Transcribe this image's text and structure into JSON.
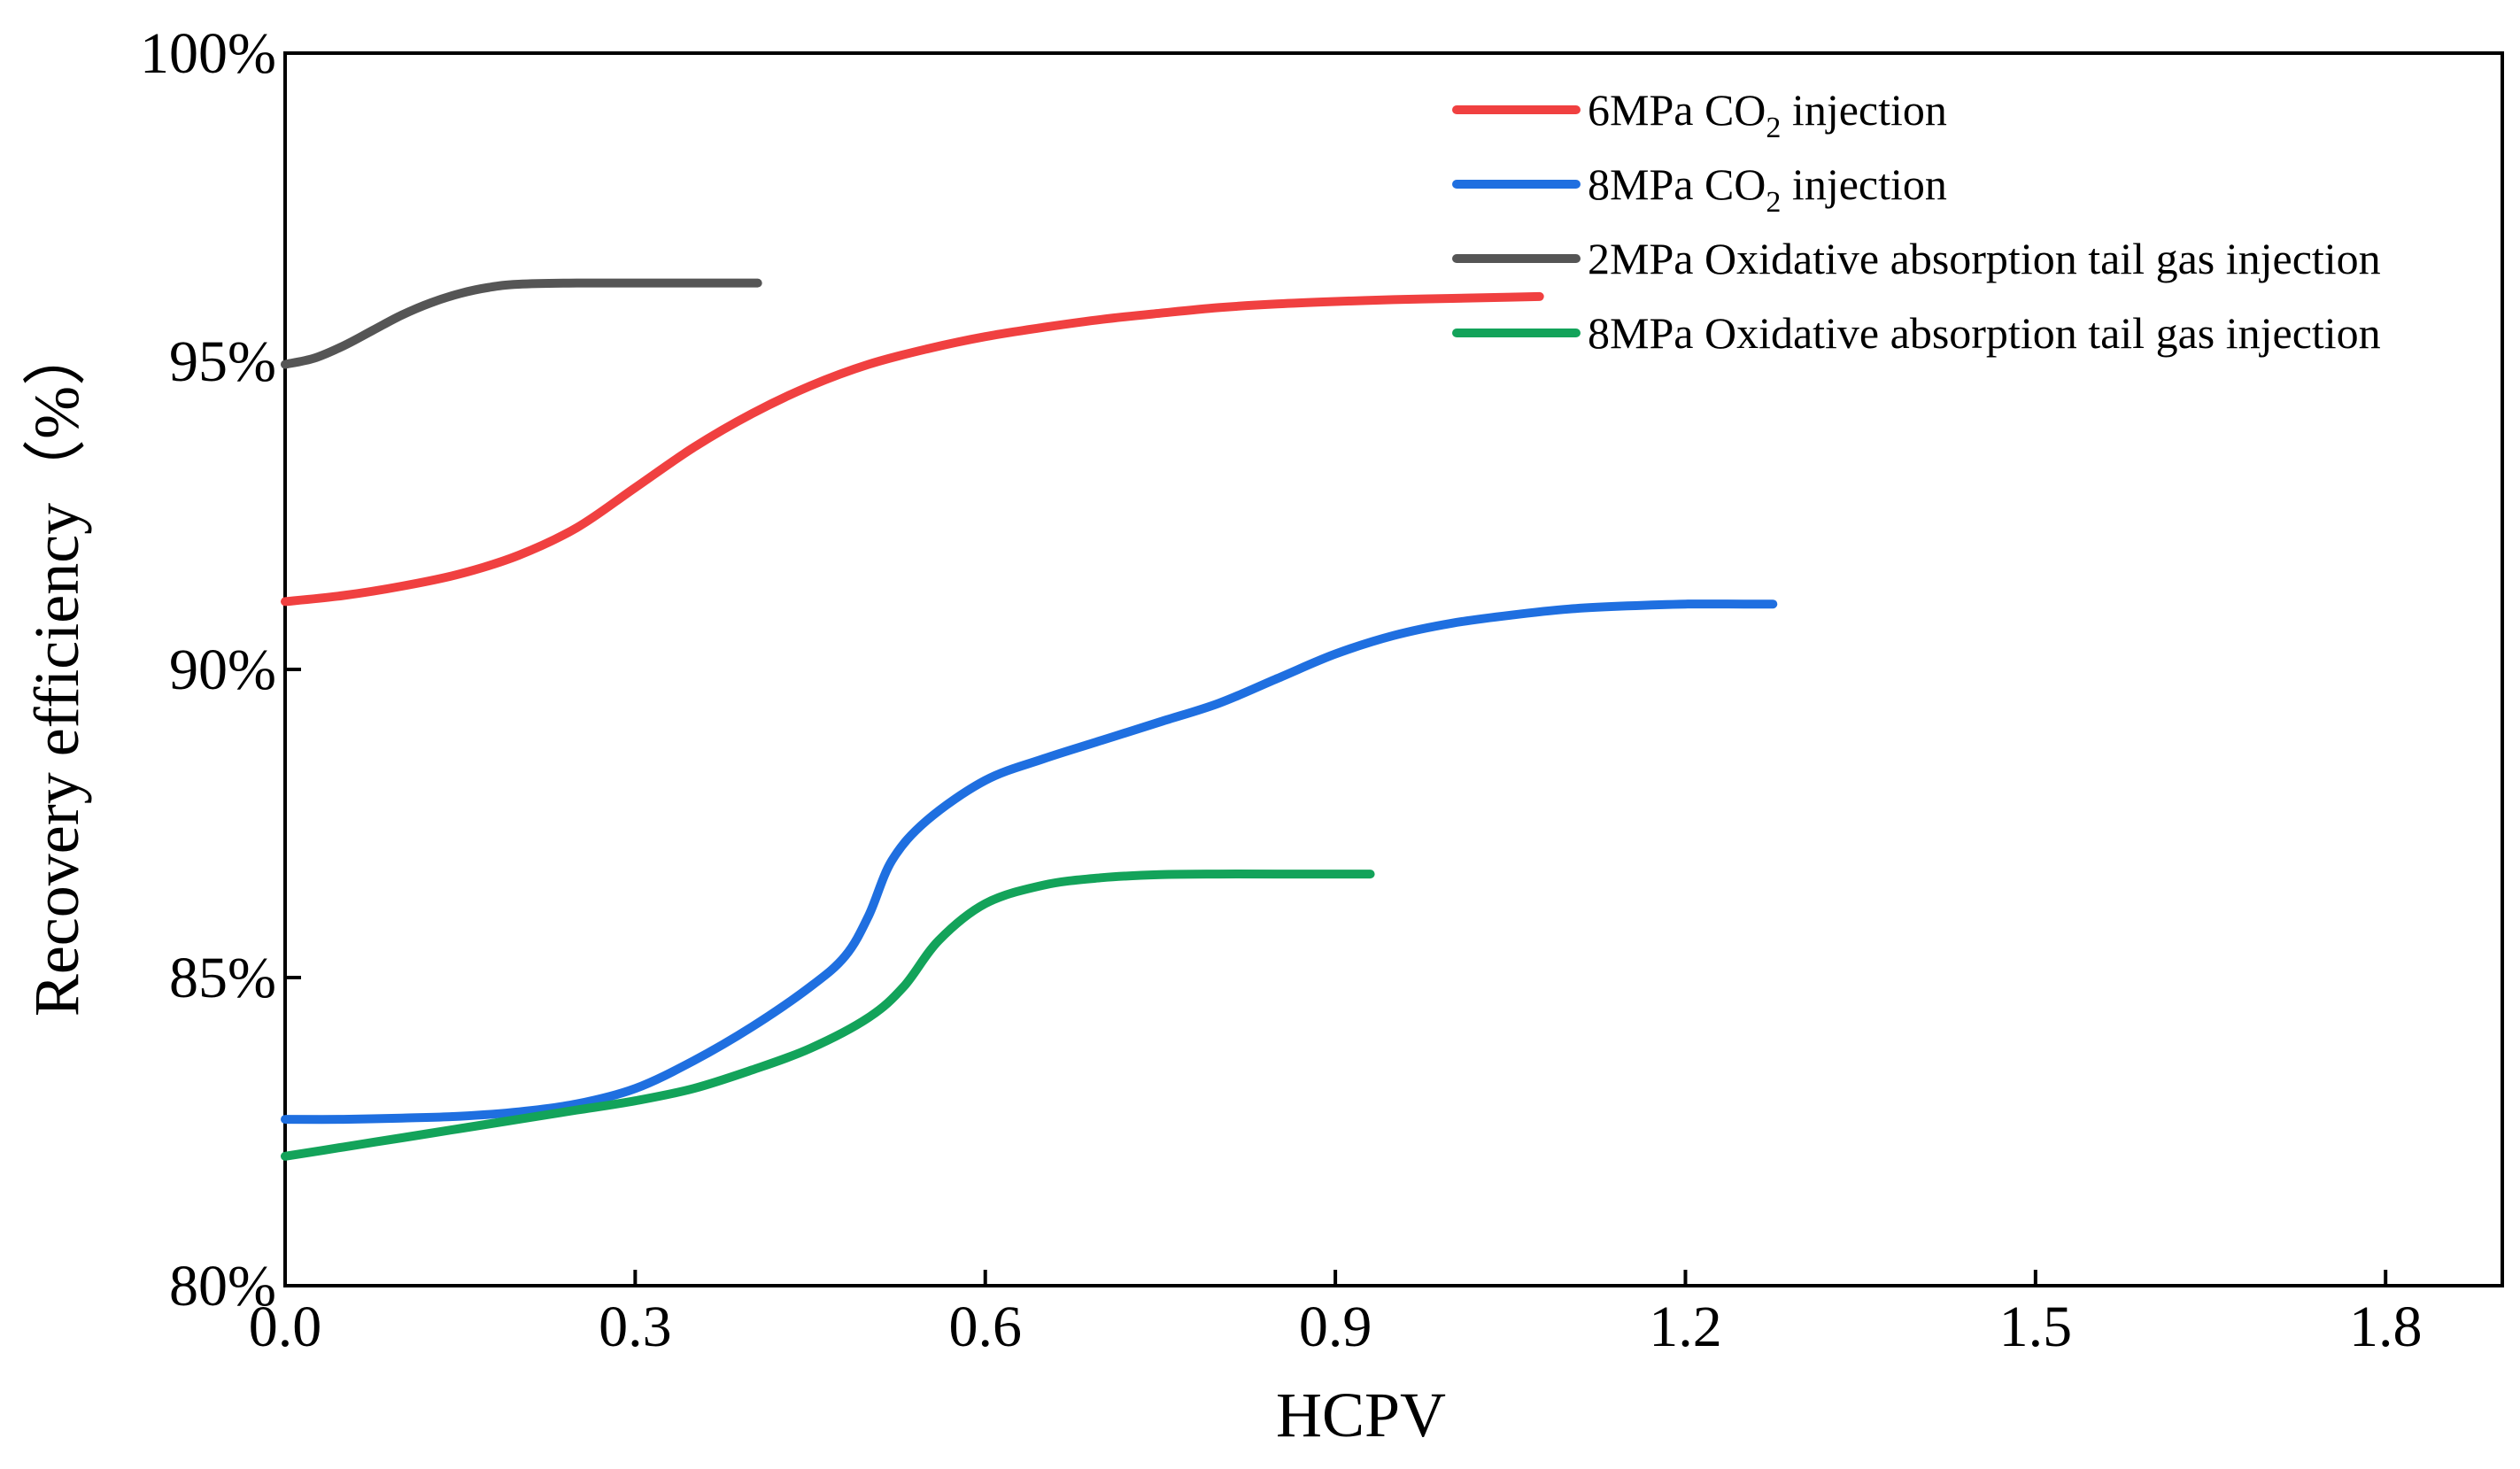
{
  "chart_data": {
    "type": "line",
    "title": "",
    "xlabel": "HCPV",
    "ylabel": "Recovery efficiency（%）",
    "xlim": [
      0.0,
      1.9
    ],
    "ylim": [
      80,
      100
    ],
    "xticks": [
      0.0,
      0.3,
      0.6,
      0.9,
      1.2,
      1.5,
      1.8
    ],
    "xtick_labels": [
      "0.0",
      "0.3",
      "0.6",
      "0.9",
      "1.2",
      "1.5",
      "1.8"
    ],
    "yticks": [
      80,
      85,
      90,
      95,
      100
    ],
    "ytick_labels": [
      "80%",
      "85%",
      "90%",
      "95%",
      "100%"
    ],
    "grid": false,
    "legend_position": "top-right",
    "series": [
      {
        "name": "6MPa CO2 injection",
        "legend": {
          "pre": "6MPa CO",
          "sub": "2",
          "post": " injection"
        },
        "color": "#f04040",
        "x": [
          0.0,
          0.05,
          0.1,
          0.15,
          0.2,
          0.25,
          0.3,
          0.35,
          0.4,
          0.45,
          0.5,
          0.55,
          0.6,
          0.65,
          0.7,
          0.75,
          0.8,
          0.85,
          0.9,
          0.95,
          1.0,
          1.05,
          1.075
        ],
        "y": [
          91.1,
          91.2,
          91.35,
          91.55,
          91.85,
          92.3,
          92.95,
          93.6,
          94.15,
          94.6,
          94.95,
          95.2,
          95.4,
          95.55,
          95.68,
          95.78,
          95.87,
          95.93,
          95.97,
          96.0,
          96.02,
          96.04,
          96.05
        ]
      },
      {
        "name": "8MPa CO2 injection",
        "legend": {
          "pre": "8MPa CO",
          "sub": "2",
          "post": " injection"
        },
        "color": "#1f6fe0",
        "x": [
          0.0,
          0.05,
          0.1,
          0.15,
          0.2,
          0.25,
          0.3,
          0.35,
          0.4,
          0.45,
          0.48,
          0.5,
          0.52,
          0.55,
          0.6,
          0.65,
          0.7,
          0.75,
          0.8,
          0.85,
          0.9,
          0.95,
          1.0,
          1.05,
          1.1,
          1.15,
          1.2,
          1.25,
          1.275
        ],
        "y": [
          82.7,
          82.7,
          82.72,
          82.75,
          82.82,
          82.95,
          83.2,
          83.65,
          84.2,
          84.85,
          85.35,
          86.0,
          86.9,
          87.55,
          88.2,
          88.55,
          88.85,
          89.15,
          89.45,
          89.85,
          90.25,
          90.55,
          90.75,
          90.88,
          90.98,
          91.03,
          91.06,
          91.06,
          91.06
        ]
      },
      {
        "name": "2MPa Oxidative absorption tail gas injection",
        "legend": {
          "pre": "2MPa Oxidative absorption tail gas injection",
          "sub": "",
          "post": ""
        },
        "color": "#555555",
        "x": [
          0.0,
          0.025,
          0.05,
          0.075,
          0.1,
          0.125,
          0.15,
          0.175,
          0.2,
          0.25,
          0.3,
          0.35,
          0.405
        ],
        "y": [
          94.95,
          95.05,
          95.25,
          95.5,
          95.75,
          95.95,
          96.1,
          96.2,
          96.25,
          96.27,
          96.27,
          96.27,
          96.27
        ]
      },
      {
        "name": "8MPa Oxidative absorption tail gas injection",
        "legend": {
          "pre": "8MPa Oxidative absorption tail gas injection",
          "sub": "",
          "post": ""
        },
        "color": "#13a35a",
        "x": [
          0.0,
          0.05,
          0.1,
          0.15,
          0.2,
          0.25,
          0.3,
          0.35,
          0.4,
          0.45,
          0.5,
          0.53,
          0.56,
          0.6,
          0.65,
          0.7,
          0.75,
          0.8,
          0.85,
          0.93
        ],
        "y": [
          82.1,
          82.25,
          82.4,
          82.55,
          82.7,
          82.85,
          83.0,
          83.2,
          83.5,
          83.85,
          84.35,
          84.85,
          85.6,
          86.2,
          86.5,
          86.62,
          86.67,
          86.68,
          86.68,
          86.68
        ]
      }
    ]
  }
}
